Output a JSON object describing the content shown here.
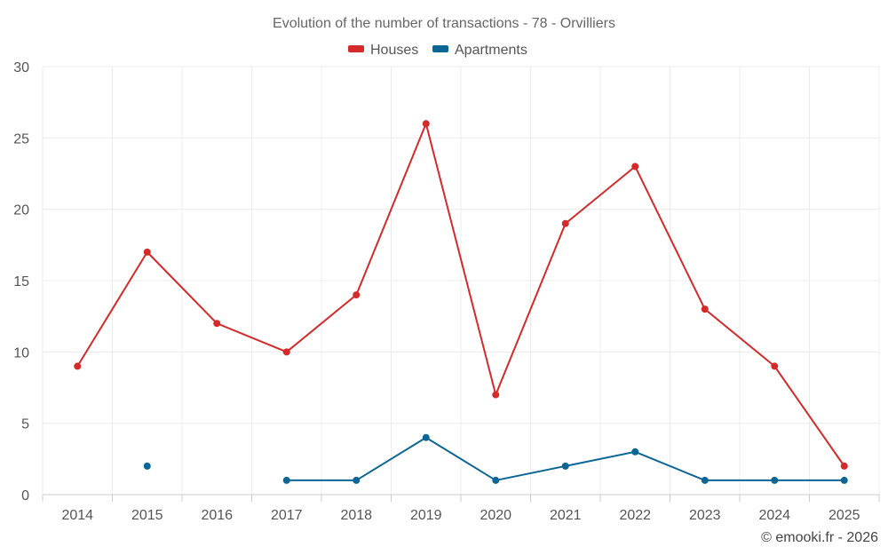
{
  "chart_data": {
    "type": "line",
    "title": "Evolution of the number of transactions - 78 - Orvilliers",
    "categories": [
      "2014",
      "2015",
      "2016",
      "2017",
      "2018",
      "2019",
      "2020",
      "2021",
      "2022",
      "2023",
      "2024",
      "2025"
    ],
    "series": [
      {
        "name": "Houses",
        "color": "#d42a2a",
        "values": [
          9,
          17,
          12,
          10,
          14,
          26,
          7,
          19,
          23,
          13,
          9,
          2
        ]
      },
      {
        "name": "Apartments",
        "color": "#0b6696",
        "values": [
          null,
          2,
          null,
          1,
          1,
          4,
          1,
          2,
          3,
          1,
          1,
          1
        ]
      }
    ],
    "ylim": [
      0,
      30
    ],
    "yticks": [
      0,
      5,
      10,
      15,
      20,
      25,
      30
    ],
    "xlabel": "",
    "ylabel": "",
    "grid": true,
    "legend": "top-center"
  },
  "credit": "© emooki.fr - 2026"
}
